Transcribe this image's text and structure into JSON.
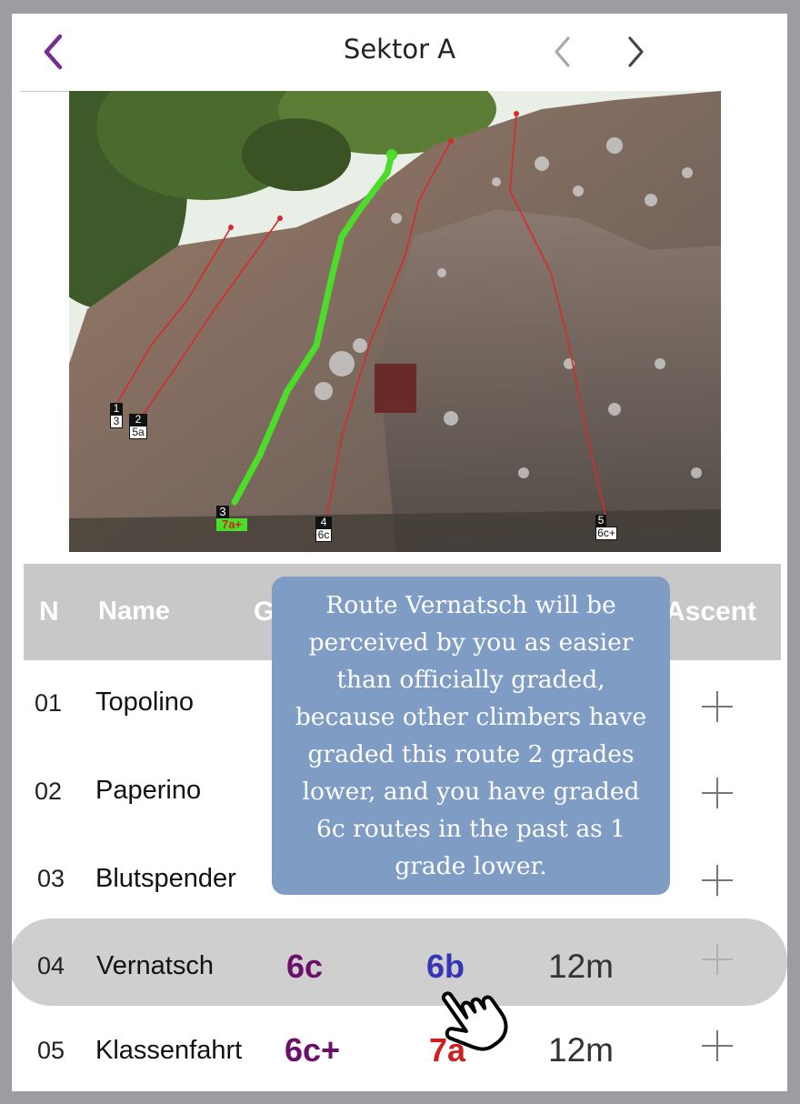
{
  "header": {
    "title": "Sektor A",
    "back_icon": "chevron-left-icon",
    "prev_icon": "chevron-left-icon",
    "next_icon": "chevron-right-icon",
    "accent_color": "#7b2d8f"
  },
  "topo": {
    "routes": [
      {
        "number": "1",
        "grade": "3",
        "color": "#d62b2b"
      },
      {
        "number": "2",
        "grade": "5a",
        "color": "#d62b2b"
      },
      {
        "number": "3",
        "grade": "7a+",
        "color": "#4cdd2a",
        "highlighted": true
      },
      {
        "number": "4",
        "grade": "6c",
        "color": "#d62b2b"
      },
      {
        "number": "5",
        "grade": "6c+",
        "color": "#d62b2b"
      }
    ]
  },
  "table": {
    "columns": {
      "number": "N",
      "name": "Name",
      "grade": "G",
      "ascent": "Ascent"
    },
    "rows": [
      {
        "num": "01",
        "name": "Topolino",
        "grade": "",
        "perceived": "",
        "length": ""
      },
      {
        "num": "02",
        "name": "Paperino",
        "grade": "",
        "perceived": "",
        "length": ""
      },
      {
        "num": "03",
        "name": "Blutspender",
        "grade": "",
        "perceived": "",
        "length": ""
      },
      {
        "num": "04",
        "name": "Vernatsch",
        "grade": "6c",
        "perceived": "6b",
        "length": "12m",
        "selected": true
      },
      {
        "num": "05",
        "name": "Klassenfahrt",
        "grade": "6c+",
        "perceived": "7a",
        "length": "12m"
      }
    ],
    "colors": {
      "official_grade": "#6b0f6b",
      "perceived_easier": "#3535b5",
      "perceived_harder": "#cc1f1f"
    }
  },
  "tooltip": {
    "lines": [
      "Route Vernatsch will be",
      "perceived by you as easier",
      "than officially graded,",
      "because other climbers have",
      "graded this route 2 grades",
      "lower, and you have graded",
      "6c routes in the past as 1",
      "grade lower."
    ],
    "background": "#7f9dc4"
  },
  "cursor_icon": "hand-pointer-icon"
}
